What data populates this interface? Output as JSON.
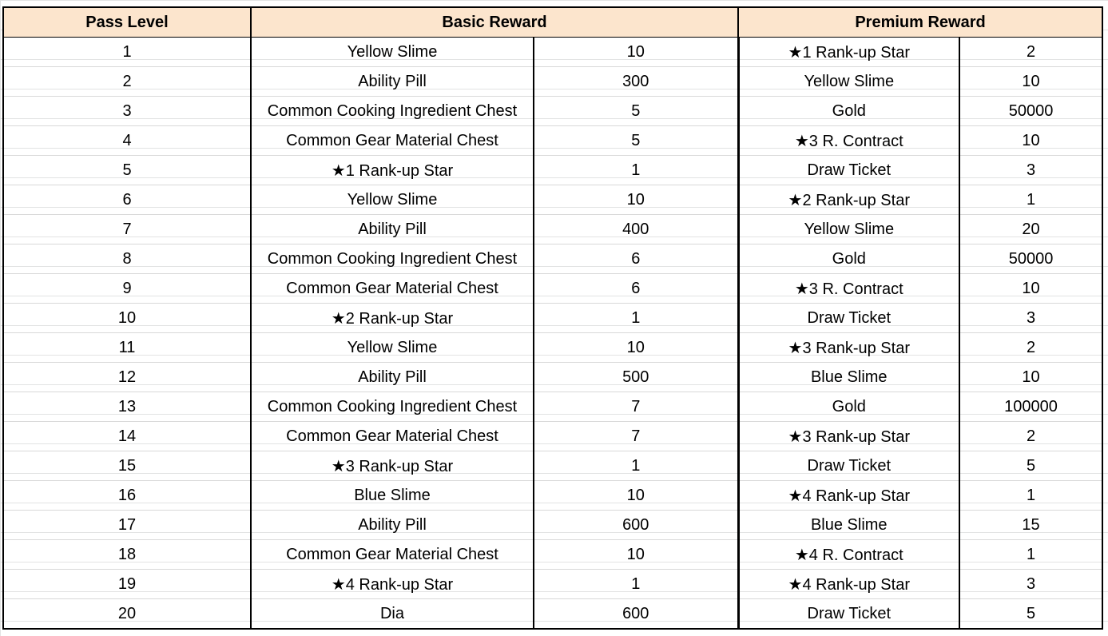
{
  "headers": {
    "level": "Pass Level",
    "basic": "Basic Reward",
    "premium": "Premium Reward"
  },
  "rows": [
    {
      "level": "1",
      "basic_item": "★1 Rank-up Star",
      "basic_qty": "",
      "premium_item": "",
      "premium_qty": ""
    }
  ]
}
